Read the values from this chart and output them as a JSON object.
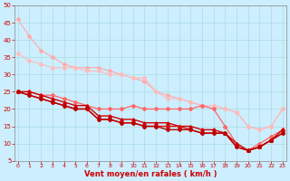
{
  "x": [
    0,
    1,
    2,
    3,
    4,
    5,
    6,
    7,
    8,
    9,
    10,
    11,
    12,
    13,
    14,
    15,
    16,
    17,
    18,
    19,
    20,
    21,
    22,
    23
  ],
  "lines": [
    {
      "y": [
        46,
        41,
        37,
        35,
        33,
        32,
        32,
        32,
        31,
        30,
        29,
        28,
        25,
        24,
        23,
        22,
        21,
        21,
        20,
        19,
        15,
        14,
        15,
        20
      ],
      "color": "#ffaaaa",
      "lw": 0.8,
      "marker": "D",
      "ms": 2.0,
      "zorder": 2
    },
    {
      "y": [
        36,
        34,
        33,
        32,
        32,
        32,
        31,
        31,
        30,
        30,
        29,
        29,
        25,
        23,
        23,
        22,
        21,
        21,
        20,
        19,
        15,
        14,
        15,
        20
      ],
      "color": "#ffbbbb",
      "lw": 0.8,
      "marker": "D",
      "ms": 2.0,
      "zorder": 2
    },
    {
      "y": [
        25,
        25,
        24,
        24,
        23,
        22,
        21,
        20,
        20,
        20,
        21,
        20,
        20,
        20,
        20,
        20,
        21,
        20,
        15,
        10,
        8,
        10,
        12,
        14
      ],
      "color": "#ff6666",
      "lw": 0.9,
      "marker": "D",
      "ms": 2.0,
      "zorder": 3
    },
    {
      "y": [
        25,
        25,
        24,
        23,
        22,
        21,
        21,
        18,
        18,
        17,
        17,
        16,
        16,
        16,
        15,
        15,
        14,
        14,
        13,
        10,
        8,
        9,
        11,
        14
      ],
      "color": "#cc0000",
      "lw": 1.0,
      "marker": "^",
      "ms": 2.5,
      "zorder": 4
    },
    {
      "y": [
        25,
        24,
        23,
        22,
        21,
        20,
        20,
        17,
        17,
        16,
        16,
        15,
        15,
        15,
        15,
        14,
        13,
        13,
        13,
        9,
        8,
        9,
        11,
        13
      ],
      "color": "#dd1111",
      "lw": 1.0,
      "marker": "D",
      "ms": 2.0,
      "zorder": 4
    },
    {
      "y": [
        25,
        24,
        23,
        22,
        21,
        20,
        20,
        17,
        17,
        16,
        16,
        15,
        15,
        14,
        14,
        14,
        13,
        13,
        13,
        9,
        8,
        9,
        11,
        13
      ],
      "color": "#bb0000",
      "lw": 1.0,
      "marker": "D",
      "ms": 2.0,
      "zorder": 4
    }
  ],
  "xlim": [
    -0.3,
    23.3
  ],
  "ylim": [
    5,
    50
  ],
  "yticks": [
    5,
    10,
    15,
    20,
    25,
    30,
    35,
    40,
    45,
    50
  ],
  "xticks": [
    0,
    1,
    2,
    3,
    4,
    5,
    6,
    7,
    8,
    9,
    10,
    11,
    12,
    13,
    14,
    15,
    16,
    17,
    18,
    19,
    20,
    21,
    22,
    23
  ],
  "xlabel": "Vent moyen/en rafales ( km/h )",
  "bg_color": "#cceeff",
  "grid_color": "#aadddd",
  "tick_color": "#cc0000",
  "xlabel_color": "#cc0000",
  "spine_color": "#888888"
}
